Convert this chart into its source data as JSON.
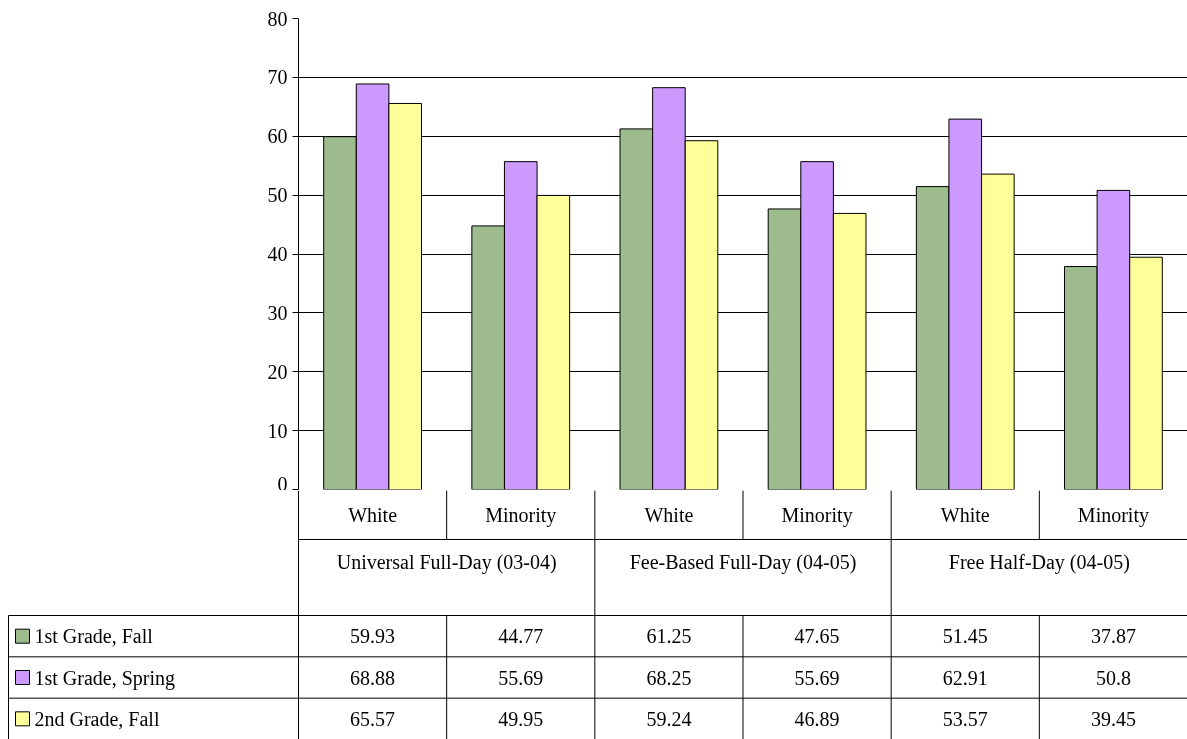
{
  "chart_data": {
    "type": "bar",
    "categories": [
      "White",
      "Minority",
      "White",
      "Minority",
      "White",
      "Minority"
    ],
    "annotations": [
      "Universal Full-Day (03-04)",
      "Fee-Based Full-Day (04-05)",
      "Free Half-Day (04-05)"
    ],
    "series": [
      {
        "name": "1st Grade, Fall",
        "color": "#9dbb8d",
        "values": [
          59.93,
          44.77,
          61.25,
          47.65,
          51.45,
          37.87
        ]
      },
      {
        "name": "1st Grade, Spring",
        "color": "#cc99ff",
        "values": [
          68.88,
          55.69,
          68.25,
          55.69,
          62.91,
          50.8
        ]
      },
      {
        "name": "2nd Grade, Fall",
        "color": "#ffff99",
        "values": [
          65.57,
          49.95,
          59.24,
          46.89,
          53.57,
          39.45
        ]
      }
    ],
    "ylim": [
      0,
      80
    ],
    "yticks": [
      0,
      10,
      20,
      30,
      40,
      50,
      60,
      70,
      80
    ],
    "grid": "y",
    "legend": "bottom",
    "data_labels": true
  }
}
